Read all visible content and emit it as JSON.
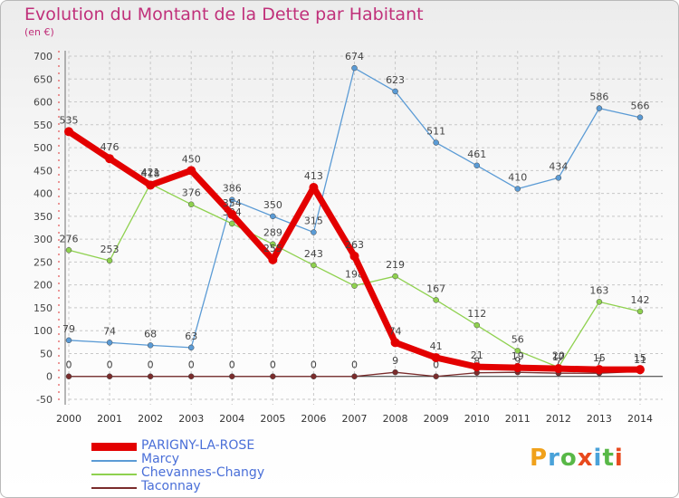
{
  "title": "Evolution du Montant de la Dette par Habitant",
  "subtitle": "(en €)",
  "logo": "Proxiti",
  "colors": {
    "title": "#c0307a",
    "grid": "#c8c8c8",
    "axis": "#6e6e6e",
    "zero_line": "#333333"
  },
  "chart_data": {
    "type": "line",
    "x": [
      "2000",
      "2001",
      "2002",
      "2003",
      "2004",
      "2005",
      "2006",
      "2007",
      "2008",
      "2009",
      "2010",
      "2011",
      "2012",
      "2013",
      "2014"
    ],
    "ylim": [
      -50,
      700
    ],
    "yticks": [
      "700",
      "650",
      "600",
      "550",
      "500",
      "450",
      "400",
      "350",
      "300",
      "250",
      "200",
      "150",
      "100",
      "50",
      "0",
      "-50"
    ],
    "grid": true,
    "legend_position": "bottom-left",
    "series": [
      {
        "name": "Marcy",
        "color": "#5b9bd5",
        "values": [
          79,
          74,
          68,
          63,
          386,
          350,
          315,
          674,
          623,
          511,
          461,
          410,
          434,
          586,
          566
        ],
        "labels": [
          "79",
          "74",
          "68",
          "63",
          "386",
          "350",
          "315",
          "674",
          "623",
          "511",
          "461",
          "410",
          "434",
          "586",
          "566"
        ]
      },
      {
        "name": "Chevannes-Changy",
        "color": "#8fd14f",
        "values": [
          276,
          253,
          421,
          376,
          334,
          289,
          243,
          198,
          219,
          167,
          112,
          56,
          20,
          163,
          142
        ],
        "labels": [
          "276",
          "253",
          "421",
          "376",
          "334",
          "289",
          "243",
          "198",
          "219",
          "167",
          "112",
          "56",
          "20",
          "163",
          "142"
        ]
      },
      {
        "name": "Taconnay",
        "color": "#7a2c2c",
        "values": [
          0,
          0,
          0,
          0,
          0,
          0,
          0,
          0,
          9,
          0,
          8,
          9,
          7,
          7,
          11
        ],
        "labels": [
          "0",
          "0",
          "0",
          "0",
          "0",
          "0",
          "0",
          "0",
          "9",
          "0",
          "8",
          "9",
          "7",
          "7",
          "11"
        ]
      },
      {
        "name": "PARIGNY-LA-ROSE",
        "color": "#e30000",
        "values": [
          535,
          476,
          418,
          450,
          354,
          255,
          413,
          263,
          74,
          41,
          21,
          19,
          17,
          15,
          15
        ],
        "labels": [
          "535",
          "476",
          "418",
          "450",
          "354",
          "255",
          "413",
          "263",
          "74",
          "41",
          "21",
          "19",
          "17",
          "15",
          "15"
        ]
      }
    ]
  }
}
